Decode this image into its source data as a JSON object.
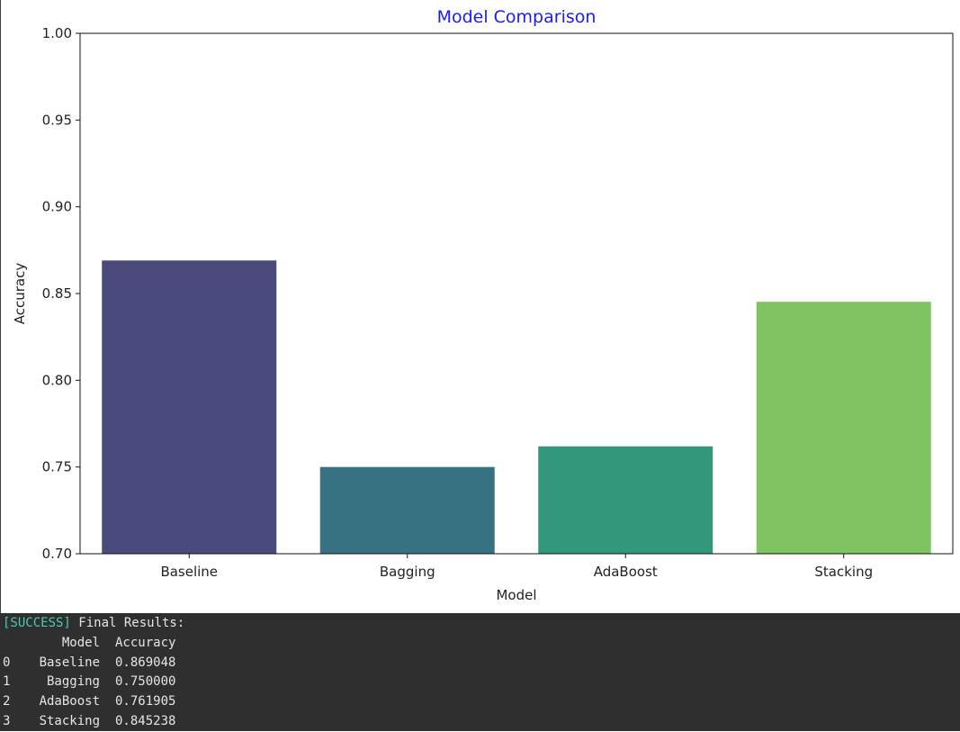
{
  "chart_data": {
    "type": "bar",
    "title": "Model Comparison",
    "title_color": "#1a1aff",
    "xlabel": "Model",
    "ylabel": "Accuracy",
    "categories": [
      "Baseline",
      "Bagging",
      "AdaBoost",
      "Stacking"
    ],
    "values": [
      0.869048,
      0.75,
      0.761905,
      0.845238
    ],
    "colors": [
      "#4a4a7c",
      "#377282",
      "#33977c",
      "#7fc362"
    ],
    "ylim": [
      0.7,
      1.0
    ],
    "yticks": [
      "0.70",
      "0.75",
      "0.80",
      "0.85",
      "0.90",
      "0.95",
      "1.00"
    ],
    "grid": false,
    "legend": false
  },
  "console": {
    "status_tag": "[SUCCESS]",
    "status_text": " Final Results:",
    "columns": [
      "Model",
      "Accuracy"
    ],
    "rows": [
      {
        "index": "0",
        "model": "Baseline",
        "accuracy": "0.869048"
      },
      {
        "index": "1",
        "model": "Bagging",
        "accuracy": "0.750000"
      },
      {
        "index": "2",
        "model": "AdaBoost",
        "accuracy": "0.761905"
      },
      {
        "index": "3",
        "model": "Stacking",
        "accuracy": "0.845238"
      }
    ]
  }
}
